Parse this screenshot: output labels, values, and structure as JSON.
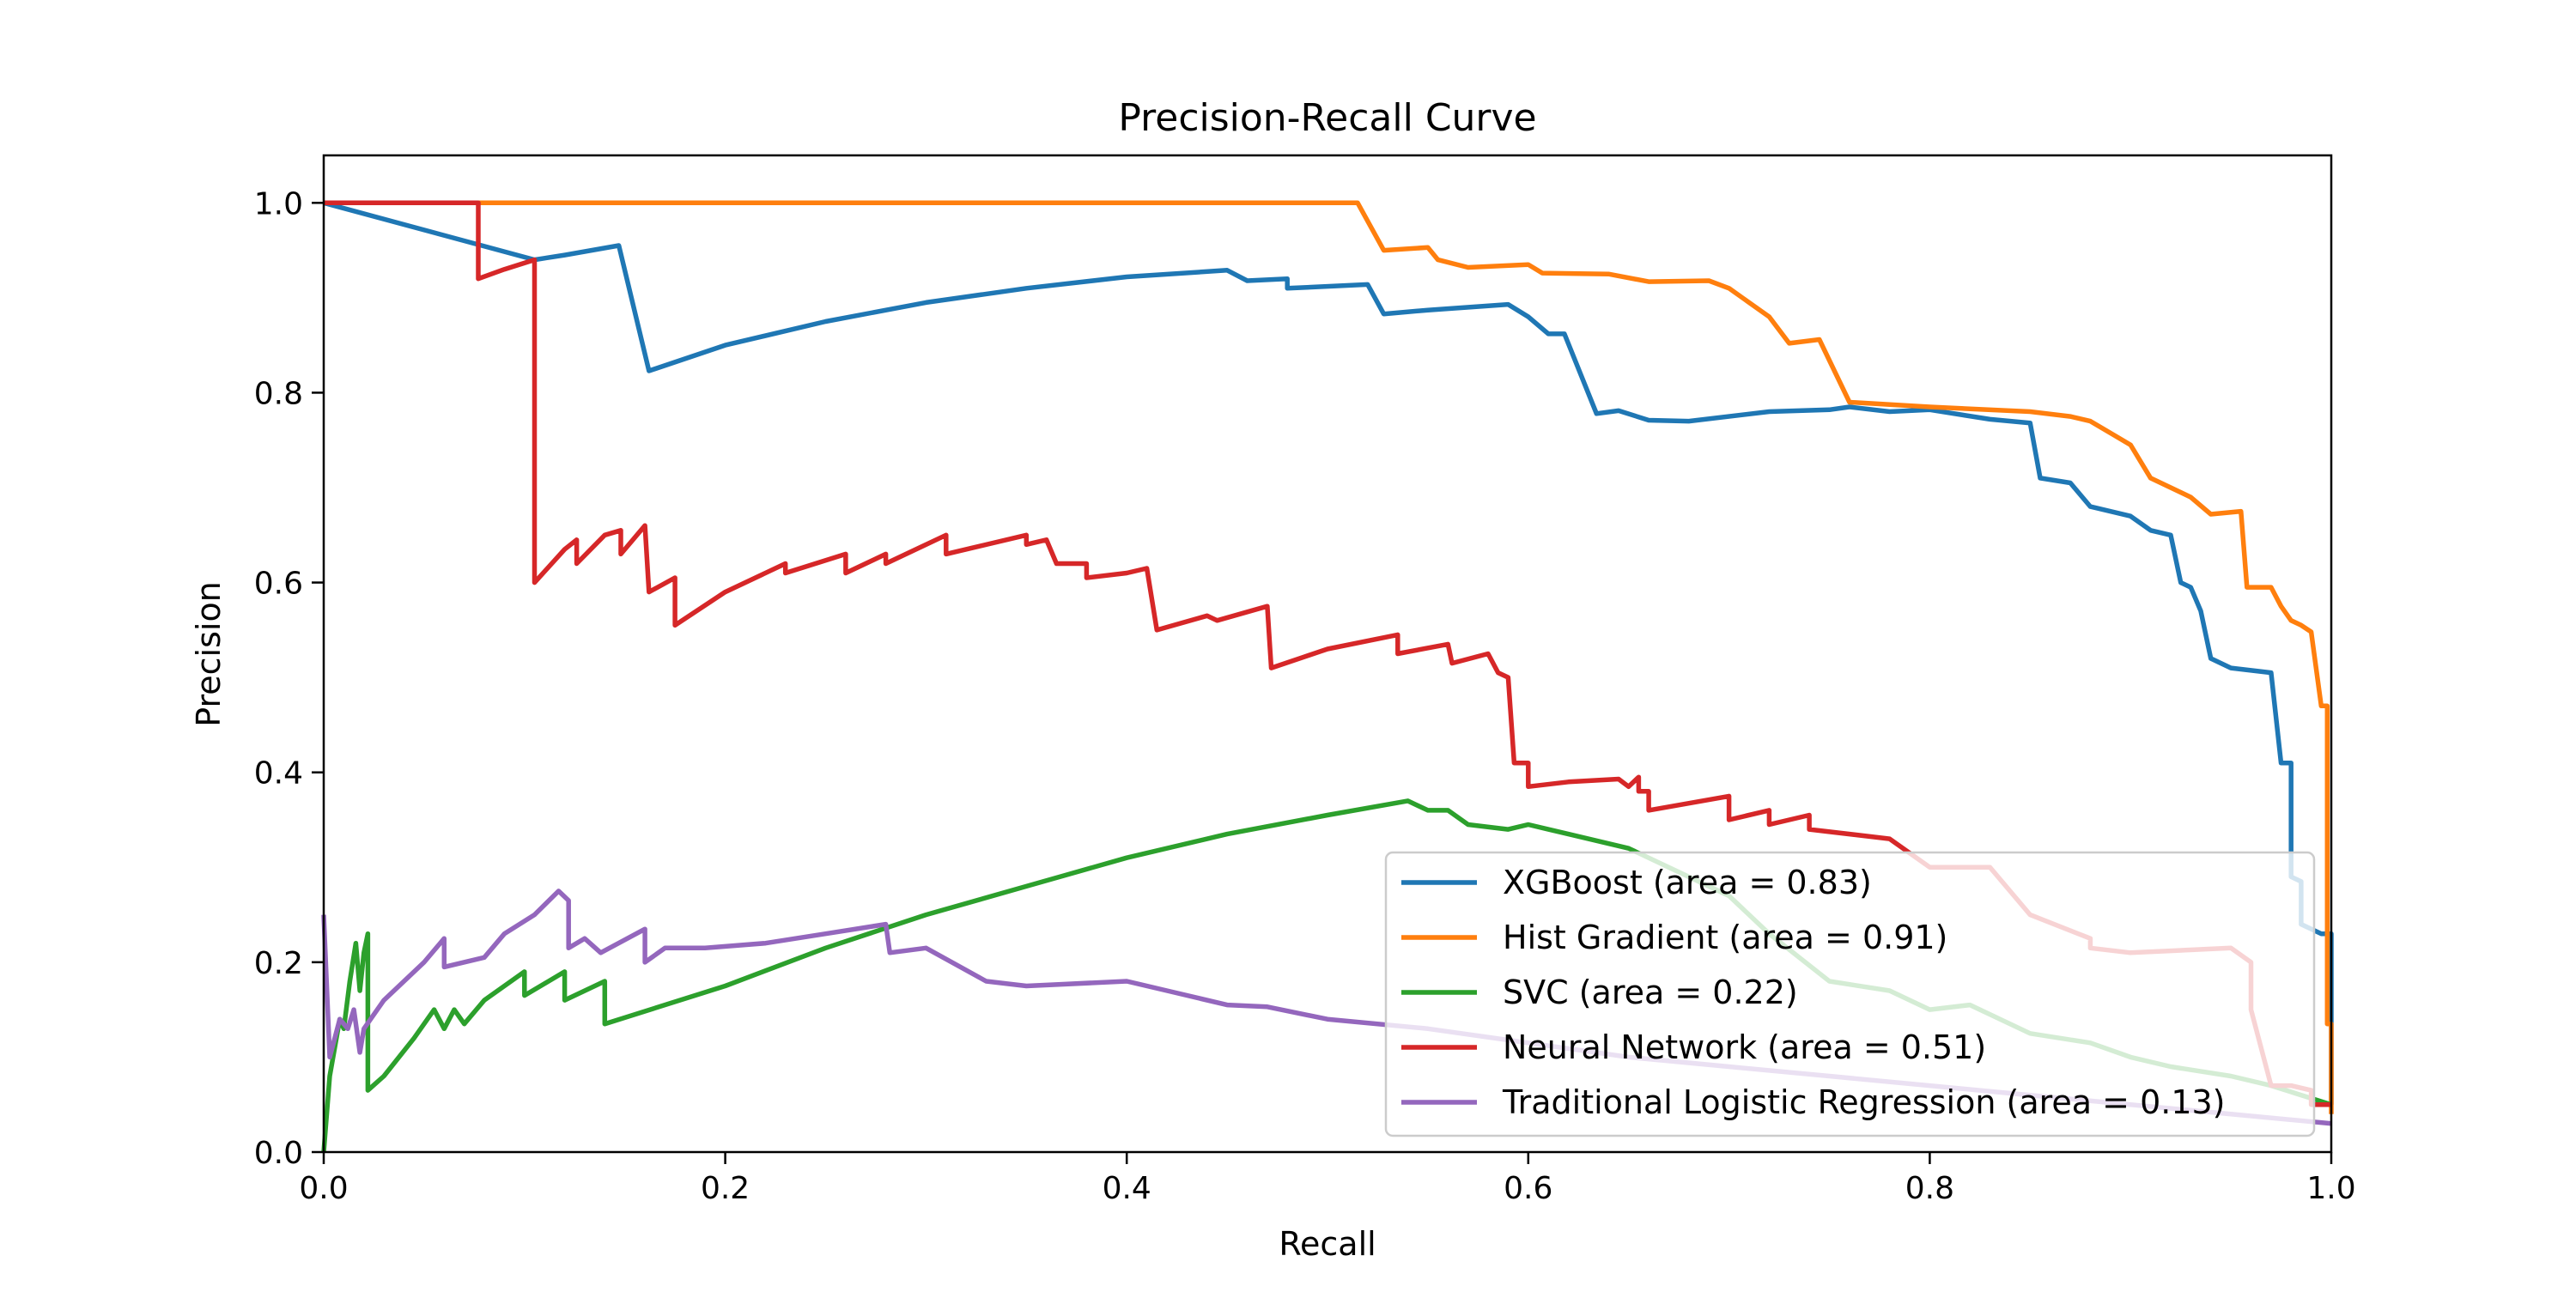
{
  "chart_data": {
    "type": "line",
    "title": "Precision-Recall Curve",
    "xlabel": "Recall",
    "ylabel": "Precision",
    "xlim": [
      0.0,
      1.0
    ],
    "ylim": [
      0.0,
      1.05
    ],
    "xticks": [
      0.0,
      0.2,
      0.4,
      0.6,
      0.8,
      1.0
    ],
    "xtick_labels": [
      "0.0",
      "0.2",
      "0.4",
      "0.6",
      "0.8",
      "1.0"
    ],
    "yticks": [
      0.0,
      0.2,
      0.4,
      0.6,
      0.8,
      1.0
    ],
    "ytick_labels": [
      "0.0",
      "0.2",
      "0.4",
      "0.6",
      "0.8",
      "1.0"
    ],
    "grid": false,
    "legend_position": "lower-right",
    "series": [
      {
        "name": "XGBoost (area = 0.83)",
        "color": "#1f77b4",
        "points": [
          [
            0,
            1.0
          ],
          [
            0.105,
            0.94
          ],
          [
            0.12,
            0.945
          ],
          [
            0.147,
            0.955
          ],
          [
            0.162,
            0.823
          ],
          [
            0.2,
            0.85
          ],
          [
            0.25,
            0.875
          ],
          [
            0.3,
            0.895
          ],
          [
            0.35,
            0.91
          ],
          [
            0.4,
            0.922
          ],
          [
            0.45,
            0.929
          ],
          [
            0.46,
            0.918
          ],
          [
            0.48,
            0.92
          ],
          [
            0.48,
            0.91
          ],
          [
            0.52,
            0.914
          ],
          [
            0.528,
            0.883
          ],
          [
            0.55,
            0.887
          ],
          [
            0.59,
            0.893
          ],
          [
            0.6,
            0.88
          ],
          [
            0.61,
            0.862
          ],
          [
            0.618,
            0.862
          ],
          [
            0.634,
            0.778
          ],
          [
            0.645,
            0.781
          ],
          [
            0.66,
            0.771
          ],
          [
            0.68,
            0.77
          ],
          [
            0.72,
            0.78
          ],
          [
            0.75,
            0.782
          ],
          [
            0.76,
            0.785
          ],
          [
            0.78,
            0.78
          ],
          [
            0.8,
            0.782
          ],
          [
            0.83,
            0.772
          ],
          [
            0.85,
            0.768
          ],
          [
            0.855,
            0.71
          ],
          [
            0.87,
            0.705
          ],
          [
            0.88,
            0.68
          ],
          [
            0.9,
            0.67
          ],
          [
            0.91,
            0.655
          ],
          [
            0.92,
            0.65
          ],
          [
            0.925,
            0.6
          ],
          [
            0.93,
            0.595
          ],
          [
            0.935,
            0.57
          ],
          [
            0.94,
            0.52
          ],
          [
            0.95,
            0.51
          ],
          [
            0.97,
            0.505
          ],
          [
            0.975,
            0.41
          ],
          [
            0.98,
            0.41
          ],
          [
            0.98,
            0.29
          ],
          [
            0.985,
            0.285
          ],
          [
            0.985,
            0.24
          ],
          [
            0.995,
            0.23
          ],
          [
            1.0,
            0.23
          ],
          [
            1.0,
            0.05
          ]
        ]
      },
      {
        "name": "Hist Gradient (area = 0.91)",
        "color": "#ff7f0e",
        "points": [
          [
            0,
            1.0
          ],
          [
            0.515,
            1.0
          ],
          [
            0.528,
            0.95
          ],
          [
            0.55,
            0.953
          ],
          [
            0.555,
            0.94
          ],
          [
            0.57,
            0.932
          ],
          [
            0.6,
            0.935
          ],
          [
            0.607,
            0.926
          ],
          [
            0.64,
            0.925
          ],
          [
            0.66,
            0.917
          ],
          [
            0.69,
            0.918
          ],
          [
            0.7,
            0.91
          ],
          [
            0.72,
            0.88
          ],
          [
            0.73,
            0.852
          ],
          [
            0.745,
            0.856
          ],
          [
            0.76,
            0.79
          ],
          [
            0.8,
            0.785
          ],
          [
            0.85,
            0.78
          ],
          [
            0.87,
            0.775
          ],
          [
            0.88,
            0.77
          ],
          [
            0.9,
            0.745
          ],
          [
            0.91,
            0.71
          ],
          [
            0.92,
            0.7
          ],
          [
            0.93,
            0.69
          ],
          [
            0.94,
            0.672
          ],
          [
            0.955,
            0.675
          ],
          [
            0.958,
            0.595
          ],
          [
            0.97,
            0.595
          ],
          [
            0.975,
            0.575
          ],
          [
            0.98,
            0.56
          ],
          [
            0.985,
            0.555
          ],
          [
            0.99,
            0.548
          ],
          [
            0.995,
            0.47
          ],
          [
            0.998,
            0.47
          ],
          [
            0.998,
            0.135
          ],
          [
            1.0,
            0.135
          ],
          [
            1.0,
            0.04
          ]
        ]
      },
      {
        "name": "SVC (area = 0.22)",
        "color": "#2ca02c",
        "points": [
          [
            0,
            0.0
          ],
          [
            0.003,
            0.08
          ],
          [
            0.008,
            0.14
          ],
          [
            0.01,
            0.13
          ],
          [
            0.013,
            0.18
          ],
          [
            0.016,
            0.22
          ],
          [
            0.018,
            0.17
          ],
          [
            0.02,
            0.21
          ],
          [
            0.022,
            0.23
          ],
          [
            0.022,
            0.065
          ],
          [
            0.03,
            0.08
          ],
          [
            0.045,
            0.12
          ],
          [
            0.055,
            0.15
          ],
          [
            0.06,
            0.13
          ],
          [
            0.065,
            0.15
          ],
          [
            0.07,
            0.135
          ],
          [
            0.08,
            0.16
          ],
          [
            0.1,
            0.19
          ],
          [
            0.1,
            0.165
          ],
          [
            0.12,
            0.19
          ],
          [
            0.12,
            0.16
          ],
          [
            0.14,
            0.18
          ],
          [
            0.14,
            0.135
          ],
          [
            0.2,
            0.175
          ],
          [
            0.25,
            0.215
          ],
          [
            0.3,
            0.25
          ],
          [
            0.35,
            0.28
          ],
          [
            0.4,
            0.31
          ],
          [
            0.45,
            0.335
          ],
          [
            0.5,
            0.355
          ],
          [
            0.54,
            0.37
          ],
          [
            0.55,
            0.36
          ],
          [
            0.56,
            0.36
          ],
          [
            0.57,
            0.345
          ],
          [
            0.59,
            0.34
          ],
          [
            0.6,
            0.345
          ],
          [
            0.61,
            0.34
          ],
          [
            0.62,
            0.335
          ],
          [
            0.65,
            0.32
          ],
          [
            0.7,
            0.27
          ],
          [
            0.72,
            0.23
          ],
          [
            0.75,
            0.18
          ],
          [
            0.78,
            0.17
          ],
          [
            0.8,
            0.15
          ],
          [
            0.82,
            0.155
          ],
          [
            0.85,
            0.125
          ],
          [
            0.88,
            0.115
          ],
          [
            0.9,
            0.1
          ],
          [
            0.92,
            0.09
          ],
          [
            0.95,
            0.08
          ],
          [
            0.97,
            0.07
          ],
          [
            1.0,
            0.05
          ]
        ]
      },
      {
        "name": "Neural Network (area = 0.51)",
        "color": "#d62728",
        "points": [
          [
            0,
            1.0
          ],
          [
            0.077,
            1.0
          ],
          [
            0.077,
            0.92
          ],
          [
            0.09,
            0.93
          ],
          [
            0.105,
            0.94
          ],
          [
            0.105,
            0.6
          ],
          [
            0.12,
            0.635
          ],
          [
            0.126,
            0.645
          ],
          [
            0.126,
            0.62
          ],
          [
            0.14,
            0.65
          ],
          [
            0.148,
            0.655
          ],
          [
            0.148,
            0.63
          ],
          [
            0.16,
            0.66
          ],
          [
            0.162,
            0.59
          ],
          [
            0.175,
            0.605
          ],
          [
            0.175,
            0.555
          ],
          [
            0.2,
            0.59
          ],
          [
            0.23,
            0.62
          ],
          [
            0.23,
            0.61
          ],
          [
            0.26,
            0.63
          ],
          [
            0.26,
            0.61
          ],
          [
            0.28,
            0.63
          ],
          [
            0.28,
            0.62
          ],
          [
            0.31,
            0.65
          ],
          [
            0.31,
            0.63
          ],
          [
            0.35,
            0.65
          ],
          [
            0.35,
            0.64
          ],
          [
            0.36,
            0.645
          ],
          [
            0.365,
            0.62
          ],
          [
            0.38,
            0.62
          ],
          [
            0.38,
            0.605
          ],
          [
            0.4,
            0.61
          ],
          [
            0.41,
            0.615
          ],
          [
            0.415,
            0.55
          ],
          [
            0.44,
            0.565
          ],
          [
            0.445,
            0.56
          ],
          [
            0.47,
            0.575
          ],
          [
            0.472,
            0.51
          ],
          [
            0.5,
            0.53
          ],
          [
            0.535,
            0.545
          ],
          [
            0.535,
            0.525
          ],
          [
            0.56,
            0.535
          ],
          [
            0.562,
            0.515
          ],
          [
            0.58,
            0.525
          ],
          [
            0.585,
            0.505
          ],
          [
            0.59,
            0.5
          ],
          [
            0.593,
            0.41
          ],
          [
            0.6,
            0.41
          ],
          [
            0.6,
            0.385
          ],
          [
            0.62,
            0.39
          ],
          [
            0.645,
            0.393
          ],
          [
            0.65,
            0.385
          ],
          [
            0.655,
            0.395
          ],
          [
            0.655,
            0.38
          ],
          [
            0.66,
            0.38
          ],
          [
            0.66,
            0.36
          ],
          [
            0.7,
            0.375
          ],
          [
            0.7,
            0.35
          ],
          [
            0.72,
            0.36
          ],
          [
            0.72,
            0.345
          ],
          [
            0.74,
            0.355
          ],
          [
            0.74,
            0.34
          ],
          [
            0.78,
            0.33
          ],
          [
            0.8,
            0.3
          ],
          [
            0.83,
            0.3
          ],
          [
            0.85,
            0.25
          ],
          [
            0.88,
            0.225
          ],
          [
            0.88,
            0.215
          ],
          [
            0.9,
            0.21
          ],
          [
            0.95,
            0.215
          ],
          [
            0.96,
            0.2
          ],
          [
            0.96,
            0.15
          ],
          [
            0.97,
            0.07
          ],
          [
            0.98,
            0.07
          ],
          [
            0.99,
            0.065
          ],
          [
            0.99,
            0.05
          ],
          [
            1.0,
            0.05
          ]
        ]
      },
      {
        "name": "Traditional Logistic Regression (area = 0.13)",
        "color": "#9467bd",
        "points": [
          [
            0,
            0.25
          ],
          [
            0.003,
            0.1
          ],
          [
            0.008,
            0.14
          ],
          [
            0.012,
            0.13
          ],
          [
            0.015,
            0.15
          ],
          [
            0.018,
            0.105
          ],
          [
            0.02,
            0.13
          ],
          [
            0.03,
            0.16
          ],
          [
            0.05,
            0.2
          ],
          [
            0.06,
            0.225
          ],
          [
            0.06,
            0.195
          ],
          [
            0.08,
            0.205
          ],
          [
            0.09,
            0.23
          ],
          [
            0.105,
            0.25
          ],
          [
            0.117,
            0.275
          ],
          [
            0.122,
            0.265
          ],
          [
            0.122,
            0.215
          ],
          [
            0.13,
            0.225
          ],
          [
            0.138,
            0.21
          ],
          [
            0.16,
            0.235
          ],
          [
            0.16,
            0.2
          ],
          [
            0.17,
            0.215
          ],
          [
            0.19,
            0.215
          ],
          [
            0.22,
            0.22
          ],
          [
            0.25,
            0.23
          ],
          [
            0.28,
            0.24
          ],
          [
            0.282,
            0.21
          ],
          [
            0.3,
            0.215
          ],
          [
            0.33,
            0.18
          ],
          [
            0.35,
            0.175
          ],
          [
            0.4,
            0.18
          ],
          [
            0.42,
            0.17
          ],
          [
            0.45,
            0.155
          ],
          [
            0.47,
            0.153
          ],
          [
            0.5,
            0.14
          ],
          [
            0.55,
            0.13
          ],
          [
            0.6,
            0.115
          ],
          [
            0.65,
            0.1
          ],
          [
            0.7,
            0.09
          ],
          [
            0.75,
            0.08
          ],
          [
            0.8,
            0.07
          ],
          [
            0.85,
            0.06
          ],
          [
            0.9,
            0.05
          ],
          [
            0.95,
            0.04
          ],
          [
            1.0,
            0.03
          ]
        ]
      }
    ]
  }
}
